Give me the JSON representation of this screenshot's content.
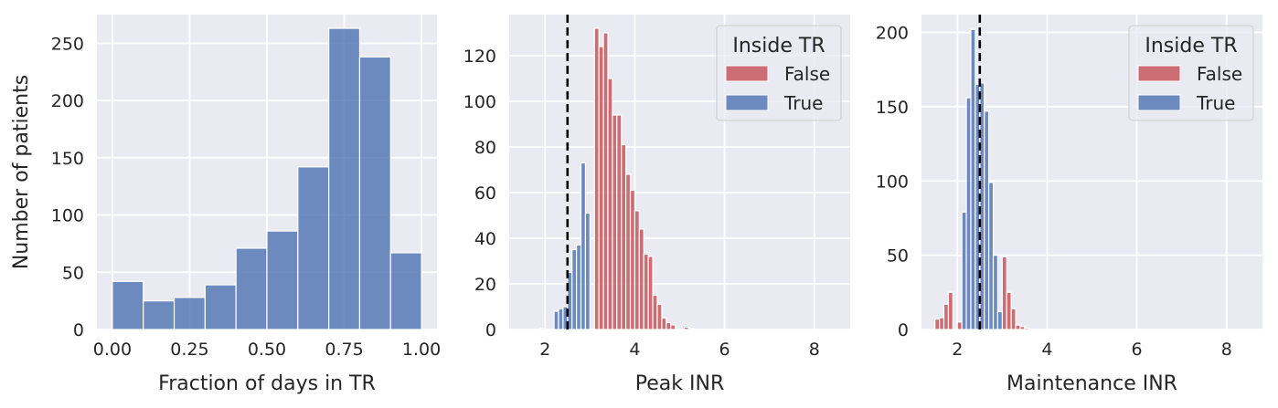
{
  "chart_data": [
    {
      "type": "bar",
      "subtype": "histogram",
      "xlabel": "Fraction of days in TR",
      "ylabel": "Number of patients",
      "xlim": [
        -0.05,
        1.05
      ],
      "ylim": [
        0,
        275
      ],
      "xticks": [
        0.0,
        0.25,
        0.5,
        0.75,
        1.0
      ],
      "xtick_labels": [
        "0.00",
        "0.25",
        "0.50",
        "0.75",
        "1.00"
      ],
      "yticks": [
        0,
        50,
        100,
        150,
        200,
        250
      ],
      "ytick_labels": [
        "0",
        "50",
        "100",
        "150",
        "200",
        "250"
      ],
      "grid": true,
      "series": [
        {
          "color": "#4c72b0",
          "bins": [
            [
              0.0,
              0.1,
              42
            ],
            [
              0.1,
              0.2,
              25
            ],
            [
              0.2,
              0.3,
              28
            ],
            [
              0.3,
              0.4,
              39
            ],
            [
              0.4,
              0.5,
              71
            ],
            [
              0.5,
              0.6,
              86
            ],
            [
              0.6,
              0.7,
              142
            ],
            [
              0.7,
              0.8,
              263
            ],
            [
              0.8,
              0.9,
              238
            ],
            [
              0.9,
              1.0,
              67
            ]
          ]
        }
      ]
    },
    {
      "type": "bar",
      "subtype": "histogram",
      "xlabel": "Peak INR",
      "ylabel": "",
      "xlim": [
        1.2,
        8.8
      ],
      "ylim": [
        0,
        138
      ],
      "xticks": [
        2,
        4,
        6,
        8
      ],
      "xtick_labels": [
        "2",
        "4",
        "6",
        "8"
      ],
      "yticks": [
        0,
        20,
        40,
        60,
        80,
        100,
        120
      ],
      "ytick_labels": [
        "0",
        "20",
        "40",
        "60",
        "80",
        "100",
        "120"
      ],
      "grid": true,
      "vline": {
        "x": 2.5,
        "style": "dashed",
        "color": "#000000"
      },
      "legend": {
        "title": "Inside TR",
        "position": "top-right",
        "entries": [
          "False",
          "True"
        ]
      },
      "series": [
        {
          "name": "False",
          "color": "#c44e52",
          "bins": [
            [
              1.9,
              2.0,
              0.5
            ],
            [
              3.1,
              3.2,
              132
            ],
            [
              3.2,
              3.3,
              124
            ],
            [
              3.3,
              3.4,
              130
            ],
            [
              3.4,
              3.5,
              110
            ],
            [
              3.5,
              3.6,
              94
            ],
            [
              3.6,
              3.7,
              94
            ],
            [
              3.7,
              3.8,
              81
            ],
            [
              3.8,
              3.9,
              68
            ],
            [
              3.9,
              4.0,
              61
            ],
            [
              4.0,
              4.1,
              52
            ],
            [
              4.1,
              4.2,
              44
            ],
            [
              4.2,
              4.3,
              33
            ],
            [
              4.3,
              4.4,
              32
            ],
            [
              4.4,
              4.5,
              15
            ],
            [
              4.5,
              4.6,
              11
            ],
            [
              4.6,
              4.7,
              5
            ],
            [
              4.7,
              4.8,
              3
            ],
            [
              4.8,
              4.9,
              2
            ],
            [
              5.1,
              5.2,
              1
            ],
            [
              5.2,
              5.3,
              0.5
            ]
          ]
        },
        {
          "name": "True",
          "color": "#4c72b0",
          "bins": [
            [
              2.2,
              2.3,
              8
            ],
            [
              2.3,
              2.4,
              9
            ],
            [
              2.4,
              2.5,
              10
            ],
            [
              2.5,
              2.6,
              25
            ],
            [
              2.6,
              2.7,
              35
            ],
            [
              2.7,
              2.8,
              37
            ],
            [
              2.8,
              2.9,
              73
            ],
            [
              2.9,
              3.0,
              51
            ]
          ]
        }
      ]
    },
    {
      "type": "bar",
      "subtype": "histogram",
      "xlabel": "Maintenance INR",
      "ylabel": "",
      "xlim": [
        1.2,
        8.8
      ],
      "ylim": [
        0,
        212
      ],
      "xticks": [
        2,
        4,
        6,
        8
      ],
      "xtick_labels": [
        "2",
        "4",
        "6",
        "8"
      ],
      "yticks": [
        0,
        50,
        100,
        150,
        200
      ],
      "ytick_labels": [
        "0",
        "50",
        "100",
        "150",
        "200"
      ],
      "grid": true,
      "vline": {
        "x": 2.5,
        "style": "dashed",
        "color": "#000000"
      },
      "legend": {
        "title": "Inside TR",
        "position": "top-right",
        "entries": [
          "False",
          "True"
        ]
      },
      "series": [
        {
          "name": "False",
          "color": "#c44e52",
          "bins": [
            [
              1.5,
              1.6,
              7
            ],
            [
              1.6,
              1.7,
              8
            ],
            [
              1.7,
              1.8,
              17
            ],
            [
              1.8,
              1.9,
              25
            ],
            [
              2.0,
              2.1,
              5
            ],
            [
              3.0,
              3.1,
              49
            ],
            [
              3.1,
              3.2,
              25
            ],
            [
              3.2,
              3.3,
              14
            ],
            [
              3.3,
              3.4,
              3
            ],
            [
              3.4,
              3.5,
              2
            ],
            [
              3.5,
              3.6,
              1
            ]
          ]
        },
        {
          "name": "True",
          "color": "#4c72b0",
          "bins": [
            [
              2.1,
              2.2,
              79
            ],
            [
              2.2,
              2.3,
              156
            ],
            [
              2.3,
              2.4,
              202
            ],
            [
              2.4,
              2.5,
              165
            ],
            [
              2.5,
              2.6,
              166
            ],
            [
              2.6,
              2.7,
              147
            ],
            [
              2.7,
              2.8,
              99
            ],
            [
              2.8,
              2.9,
              50
            ],
            [
              2.9,
              3.0,
              12
            ]
          ]
        }
      ]
    }
  ]
}
